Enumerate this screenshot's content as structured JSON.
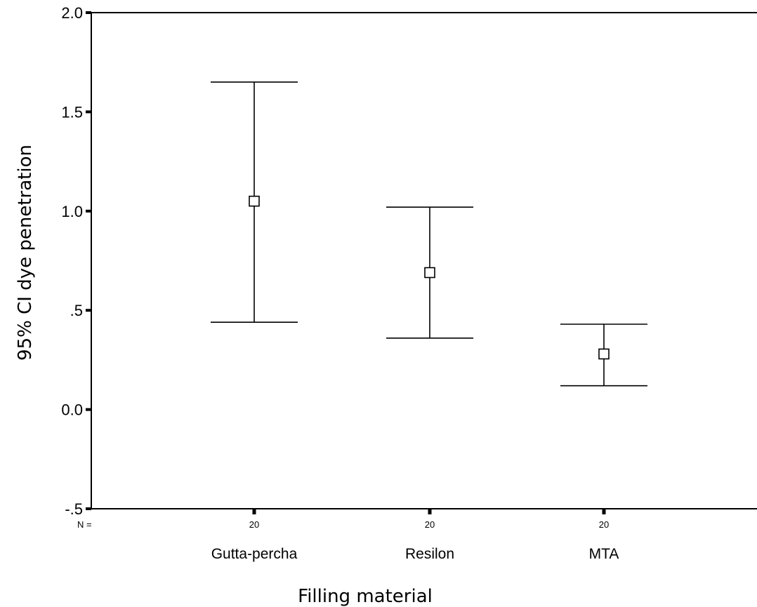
{
  "chart_data": {
    "type": "errorbar",
    "xlabel": "Filling material",
    "ylabel": "95% CI dye penetration",
    "ylim": [
      -0.5,
      2.0
    ],
    "y_ticks": [
      {
        "value": 2.0,
        "label": "2.0"
      },
      {
        "value": 1.5,
        "label": "1.5"
      },
      {
        "value": 1.0,
        "label": "1.0"
      },
      {
        "value": 0.5,
        "label": ".5"
      },
      {
        "value": 0.0,
        "label": "0.0"
      },
      {
        "value": -0.5,
        "label": "-.5"
      }
    ],
    "n_label": "N =",
    "categories": [
      "Gutta-percha",
      "Resilon",
      "MTA"
    ],
    "n": [
      "20",
      "20",
      "20"
    ],
    "mean": [
      1.05,
      0.69,
      0.28
    ],
    "lower": [
      0.44,
      0.36,
      0.12
    ],
    "upper": [
      1.65,
      1.02,
      0.43
    ]
  }
}
